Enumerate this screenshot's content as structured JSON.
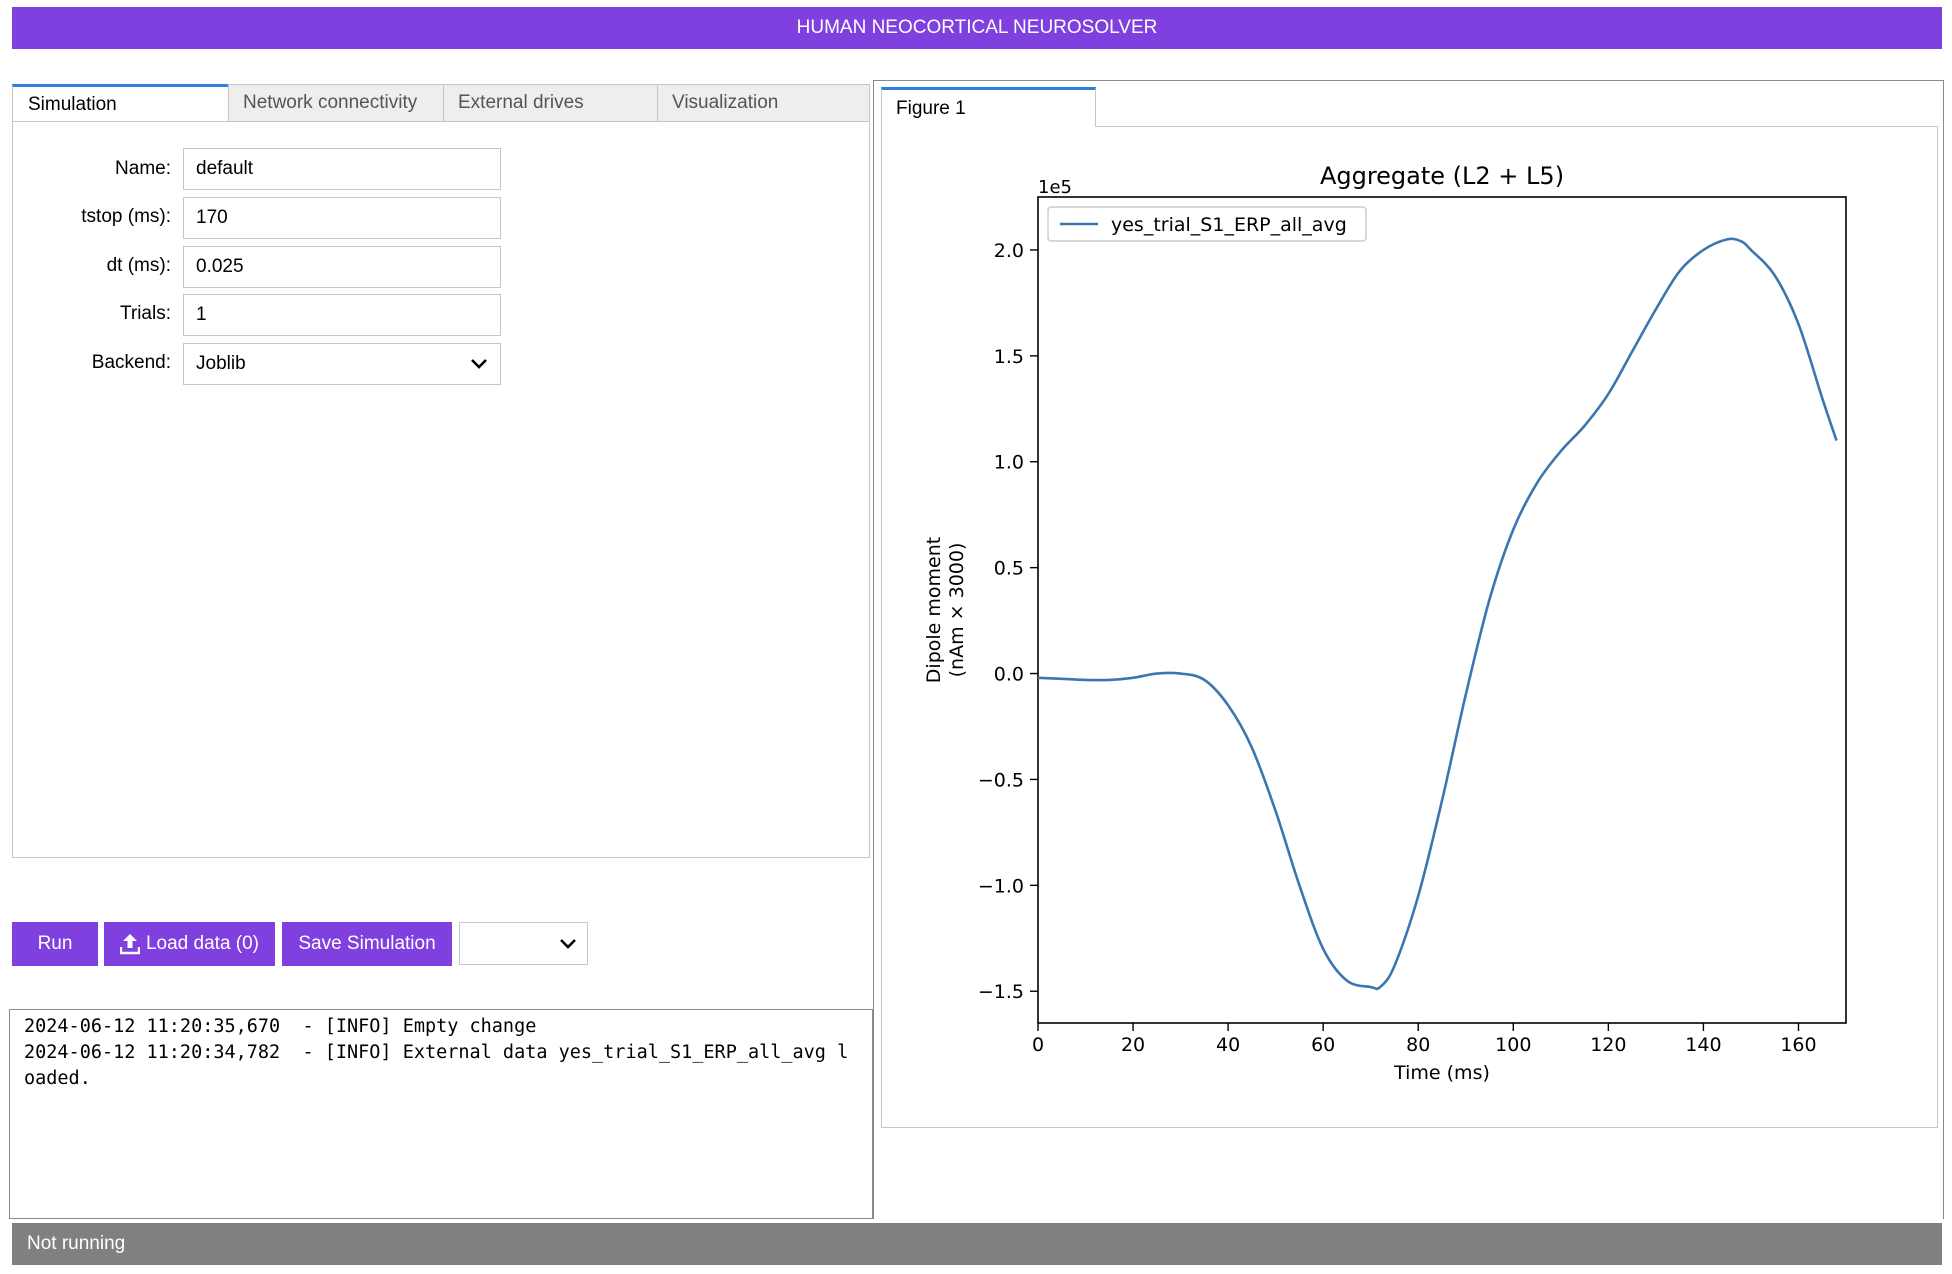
{
  "header": {
    "title": "HUMAN NEOCORTICAL NEUROSOLVER"
  },
  "tabs": [
    {
      "label": "Simulation",
      "active": true
    },
    {
      "label": "Network connectivity"
    },
    {
      "label": "External drives"
    },
    {
      "label": "Visualization"
    }
  ],
  "form": {
    "name": {
      "label": "Name:",
      "value": "default"
    },
    "tstop": {
      "label": "tstop (ms):",
      "value": "170"
    },
    "dt": {
      "label": "dt (ms):",
      "value": "0.025"
    },
    "trials": {
      "label": "Trials:",
      "value": "1"
    },
    "backend": {
      "label": "Backend:",
      "value": "Joblib"
    }
  },
  "buttons": {
    "run": "Run",
    "load_data": "Load data (0)",
    "save_simulation": "Save Simulation",
    "scenario_select_value": ""
  },
  "log": {
    "lines": [
      "2024-06-12 11:20:35,670  - [INFO] Empty change",
      "2024-06-12 11:20:34,782  - [INFO] External data yes_trial_S1_ERP_all_avg loaded."
    ]
  },
  "figure_tab": {
    "label": "Figure 1"
  },
  "status": {
    "text": "Not running"
  },
  "colors": {
    "accent": "#8040e0",
    "line": "#3b76af",
    "status": "#808080",
    "tab_indicator": "#2f7fdc"
  },
  "icons": {
    "upload": "upload-icon",
    "dropdown": "chevron-down-icon"
  },
  "chart_data": {
    "type": "line",
    "title": "Aggregate (L2 + L5)",
    "xlabel": "Time (ms)",
    "ylabel_lines": [
      "Dipole moment",
      "(nAm × 3000)"
    ],
    "offset_label": "1e5",
    "xlim": [
      0,
      170
    ],
    "ylim": [
      -1.65,
      2.25
    ],
    "xticks": [
      0,
      20,
      40,
      60,
      80,
      100,
      120,
      140,
      160
    ],
    "yticks": [
      -1.5,
      -1.0,
      -0.5,
      0.0,
      0.5,
      1.0,
      1.5,
      2.0
    ],
    "ytick_labels": [
      "−1.5",
      "−1.0",
      "−0.5",
      "0.0",
      "0.5",
      "1.0",
      "1.5",
      "2.0"
    ],
    "legend_position": "top-left",
    "grid": false,
    "series": [
      {
        "name": "yes_trial_S1_ERP_all_avg",
        "x": [
          0,
          5,
          10,
          15,
          20,
          25,
          30,
          35,
          40,
          45,
          50,
          55,
          60,
          65,
          70,
          72,
          75,
          80,
          85,
          90,
          95,
          100,
          105,
          110,
          115,
          120,
          125,
          130,
          135,
          140,
          145,
          148,
          150,
          155,
          160,
          165,
          168
        ],
        "y": [
          -0.02,
          -0.025,
          -0.03,
          -0.03,
          -0.02,
          0.0,
          0.0,
          -0.03,
          -0.15,
          -0.35,
          -0.65,
          -1.0,
          -1.3,
          -1.45,
          -1.48,
          -1.48,
          -1.38,
          -1.05,
          -0.6,
          -0.1,
          0.35,
          0.68,
          0.9,
          1.05,
          1.17,
          1.32,
          1.52,
          1.72,
          1.9,
          2.0,
          2.05,
          2.04,
          2.0,
          1.88,
          1.65,
          1.3,
          1.1
        ]
      }
    ]
  }
}
